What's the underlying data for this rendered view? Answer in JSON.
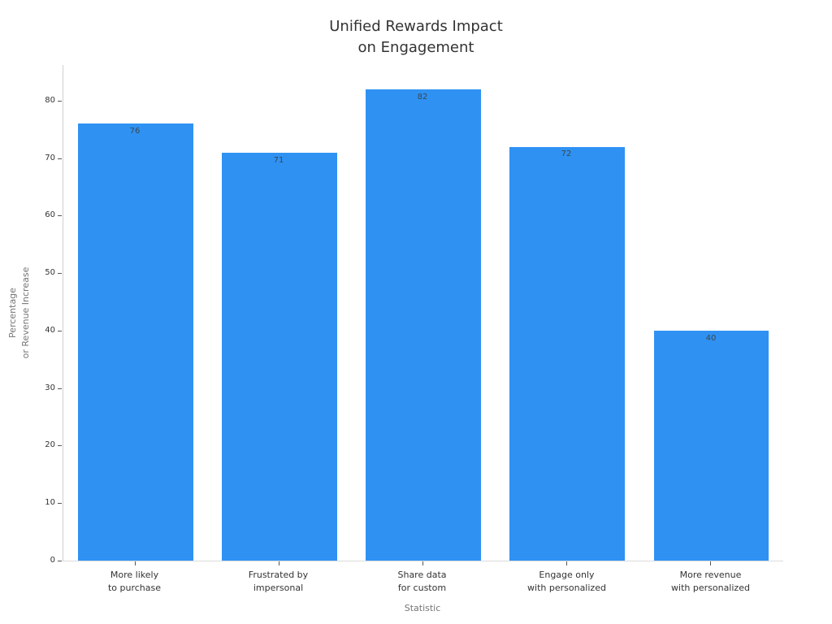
{
  "chart_data": {
    "type": "bar",
    "title": "Unified Rewards Impact\non Engagement",
    "xlabel": "Statistic",
    "ylabel": "Percentage\nor Revenue Increase",
    "categories": [
      "More likely\nto purchase",
      "Frustrated by\nimpersonal",
      "Share data\nfor custom",
      "Engage only\nwith personalized",
      "More revenue\nwith personalized"
    ],
    "values": [
      76,
      71,
      82,
      72,
      40
    ],
    "yticks": [
      0,
      10,
      20,
      30,
      40,
      50,
      60,
      70,
      80
    ],
    "ylim": [
      0,
      86.2
    ],
    "grid": false,
    "legend": null,
    "bar_width_fraction": 0.8,
    "colors": {
      "bar": "#2F92F3",
      "title_text": "#333333",
      "tick_label": "#333333",
      "axis_title": "#757575",
      "value_label": "#3A4750",
      "spine": "#CFCFCF",
      "tick_mark": "#555555",
      "background": "#FFFFFF"
    }
  }
}
